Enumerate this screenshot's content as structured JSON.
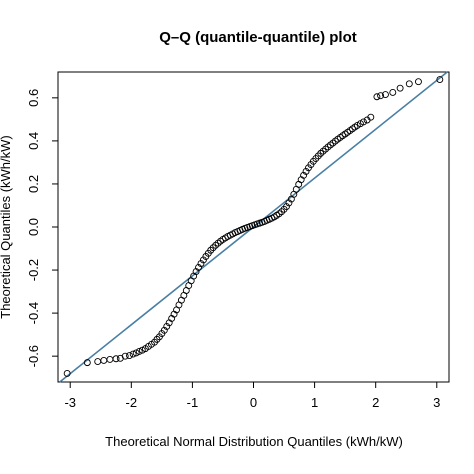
{
  "chart_data": {
    "type": "scatter",
    "title": "Q–Q (quantile-quantile) plot",
    "xlabel": "Theoretical Normal Distribution Quantiles (kWh/kW)",
    "ylabel": "Theoretical Quantiles (kWh/kW)",
    "xlim": [
      -3.2,
      3.2
    ],
    "ylim": [
      -0.72,
      0.72
    ],
    "x_ticks": [
      -3,
      -2,
      -1,
      0,
      1,
      2,
      3
    ],
    "y_ticks": [
      -0.6,
      -0.4,
      -0.2,
      0.0,
      0.2,
      0.4,
      0.6
    ],
    "x_tick_labels": [
      "-3",
      "-2",
      "-1",
      "0",
      "1",
      "2",
      "3"
    ],
    "y_tick_labels": [
      "-0.6",
      "-0.4",
      "-0.2",
      "0.0",
      "0.2",
      "0.4",
      "0.6"
    ],
    "reference_line": {
      "slope": 0.227,
      "intercept": 0.0,
      "color": "#4a7fa5"
    },
    "point_color": "#000000",
    "grid": false,
    "sample_quantiles": [
      [
        -3.05,
        -0.68
      ],
      [
        -2.72,
        -0.63
      ],
      [
        -2.55,
        -0.625
      ],
      [
        -2.45,
        -0.62
      ],
      [
        -2.35,
        -0.615
      ],
      [
        -2.25,
        -0.612
      ],
      [
        -2.18,
        -0.61
      ],
      [
        -2.1,
        -0.6
      ],
      [
        -2.03,
        -0.597
      ],
      [
        -1.97,
        -0.59
      ],
      [
        -1.92,
        -0.585
      ],
      [
        -1.87,
        -0.578
      ],
      [
        -1.82,
        -0.572
      ],
      [
        -1.77,
        -0.565
      ],
      [
        -1.72,
        -0.555
      ],
      [
        -1.67,
        -0.545
      ],
      [
        -1.62,
        -0.535
      ],
      [
        -1.58,
        -0.522
      ],
      [
        -1.54,
        -0.51
      ],
      [
        -1.5,
        -0.495
      ],
      [
        -1.46,
        -0.48
      ],
      [
        -1.42,
        -0.462
      ],
      [
        -1.38,
        -0.445
      ],
      [
        -1.34,
        -0.425
      ],
      [
        -1.3,
        -0.405
      ],
      [
        -1.26,
        -0.385
      ],
      [
        -1.22,
        -0.362
      ],
      [
        -1.18,
        -0.34
      ],
      [
        -1.14,
        -0.318
      ],
      [
        -1.1,
        -0.295
      ],
      [
        -1.06,
        -0.272
      ],
      [
        -1.02,
        -0.25
      ],
      [
        -0.98,
        -0.228
      ],
      [
        -0.94,
        -0.207
      ],
      [
        -0.9,
        -0.188
      ],
      [
        -0.86,
        -0.17
      ],
      [
        -0.82,
        -0.153
      ],
      [
        -0.78,
        -0.137
      ],
      [
        -0.74,
        -0.122
      ],
      [
        -0.7,
        -0.108
      ],
      [
        -0.66,
        -0.096
      ],
      [
        -0.62,
        -0.085
      ],
      [
        -0.58,
        -0.075
      ],
      [
        -0.54,
        -0.066
      ],
      [
        -0.5,
        -0.058
      ],
      [
        -0.46,
        -0.051
      ],
      [
        -0.42,
        -0.044
      ],
      [
        -0.38,
        -0.038
      ],
      [
        -0.34,
        -0.032
      ],
      [
        -0.3,
        -0.026
      ],
      [
        -0.26,
        -0.021
      ],
      [
        -0.22,
        -0.016
      ],
      [
        -0.18,
        -0.011
      ],
      [
        -0.14,
        -0.006
      ],
      [
        -0.1,
        -0.002
      ],
      [
        -0.06,
        0.002
      ],
      [
        -0.02,
        0.006
      ],
      [
        0.02,
        0.01
      ],
      [
        0.06,
        0.014
      ],
      [
        0.1,
        0.018
      ],
      [
        0.14,
        0.022
      ],
      [
        0.18,
        0.026
      ],
      [
        0.22,
        0.031
      ],
      [
        0.26,
        0.036
      ],
      [
        0.3,
        0.041
      ],
      [
        0.34,
        0.047
      ],
      [
        0.38,
        0.054
      ],
      [
        0.42,
        0.062
      ],
      [
        0.46,
        0.071
      ],
      [
        0.5,
        0.082
      ],
      [
        0.54,
        0.095
      ],
      [
        0.58,
        0.112
      ],
      [
        0.62,
        0.13
      ],
      [
        0.66,
        0.152
      ],
      [
        0.7,
        0.175
      ],
      [
        0.74,
        0.198
      ],
      [
        0.78,
        0.22
      ],
      [
        0.82,
        0.24
      ],
      [
        0.86,
        0.258
      ],
      [
        0.9,
        0.275
      ],
      [
        0.94,
        0.29
      ],
      [
        0.98,
        0.305
      ],
      [
        1.02,
        0.318
      ],
      [
        1.06,
        0.33
      ],
      [
        1.1,
        0.342
      ],
      [
        1.14,
        0.352
      ],
      [
        1.18,
        0.362
      ],
      [
        1.22,
        0.372
      ],
      [
        1.26,
        0.381
      ],
      [
        1.3,
        0.39
      ],
      [
        1.34,
        0.399
      ],
      [
        1.38,
        0.408
      ],
      [
        1.42,
        0.416
      ],
      [
        1.46,
        0.424
      ],
      [
        1.5,
        0.432
      ],
      [
        1.54,
        0.44
      ],
      [
        1.58,
        0.448
      ],
      [
        1.62,
        0.456
      ],
      [
        1.66,
        0.464
      ],
      [
        1.7,
        0.472
      ],
      [
        1.75,
        0.48
      ],
      [
        1.8,
        0.488
      ],
      [
        1.86,
        0.497
      ],
      [
        1.92,
        0.51
      ],
      [
        2.02,
        0.605
      ],
      [
        2.08,
        0.61
      ],
      [
        2.16,
        0.615
      ],
      [
        2.28,
        0.625
      ],
      [
        2.4,
        0.645
      ],
      [
        2.55,
        0.665
      ],
      [
        2.7,
        0.675
      ],
      [
        3.05,
        0.685
      ]
    ]
  }
}
